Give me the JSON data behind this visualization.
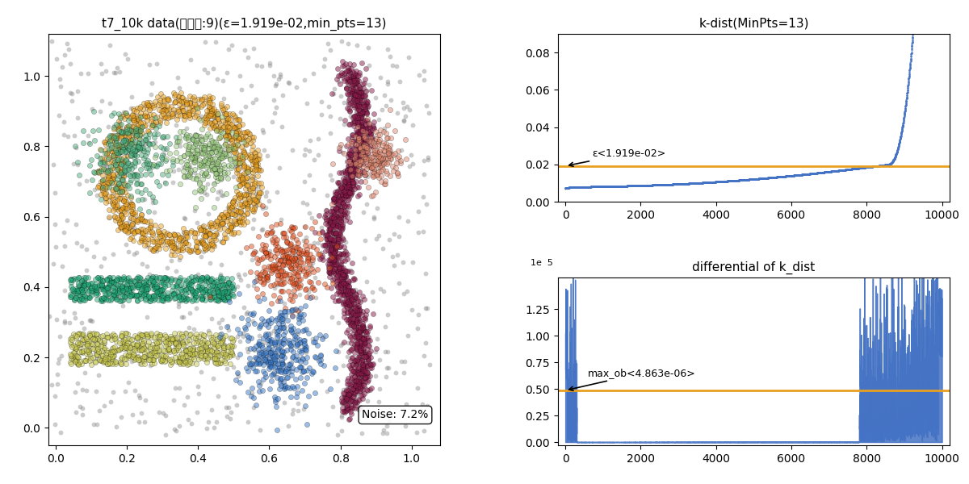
{
  "title_left": "t7_10k data(聚类数:9)(ε=1.919e-02,min_pts=13)",
  "title_kdist": "k-dist(MinPts=13)",
  "title_diff": "differential of k_dist",
  "noise_label": "Noise: 7.2%",
  "epsilon": 0.01919,
  "min_pts": 13,
  "epsilon_label": "ε<1.919e-02>",
  "max_ob_label": "max_ob<4.863e-06>",
  "max_ob_value": 4.863e-06,
  "kdist_yticks": [
    0.0,
    0.02,
    0.04,
    0.06,
    0.08
  ],
  "n_points": 10000,
  "cluster_colors": [
    "#E8A020",
    "#4CAF7D",
    "#96C87A",
    "#20A878",
    "#C8C850",
    "#8B1A4A",
    "#E05020",
    "#3878C8",
    "#E08870"
  ],
  "noise_color": "#808080",
  "orange_line_color": "#E8A020",
  "blue_line_color": "#4472C4",
  "scatter_alpha": 0.5,
  "scatter_size": 20,
  "figsize": [
    12.0,
    6.0
  ],
  "dpi": 100
}
